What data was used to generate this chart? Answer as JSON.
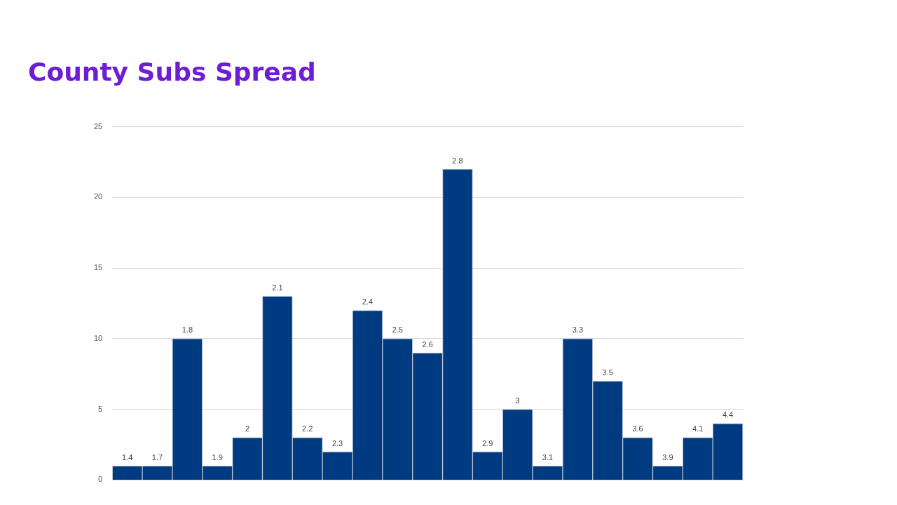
{
  "chart_data": {
    "type": "bar",
    "title": "County Subs Spread",
    "categories": [
      "1.4",
      "1.7",
      "1.8",
      "1.9",
      "2",
      "2.1",
      "2.2",
      "2.3",
      "2.4",
      "2.5",
      "2.6",
      "2.8",
      "2.9",
      "3",
      "3.1",
      "3.3",
      "3.5",
      "3.6",
      "3.9",
      "4.1",
      "4.4"
    ],
    "values": [
      1,
      1,
      10,
      1,
      3,
      13,
      3,
      2,
      12,
      10,
      9,
      22,
      2,
      5,
      1,
      10,
      7,
      3,
      1,
      3,
      4
    ],
    "color": "#003a80",
    "ylim": [
      0,
      25
    ],
    "yticks": [
      0,
      5,
      10,
      15,
      20,
      25
    ],
    "grid": "y"
  }
}
